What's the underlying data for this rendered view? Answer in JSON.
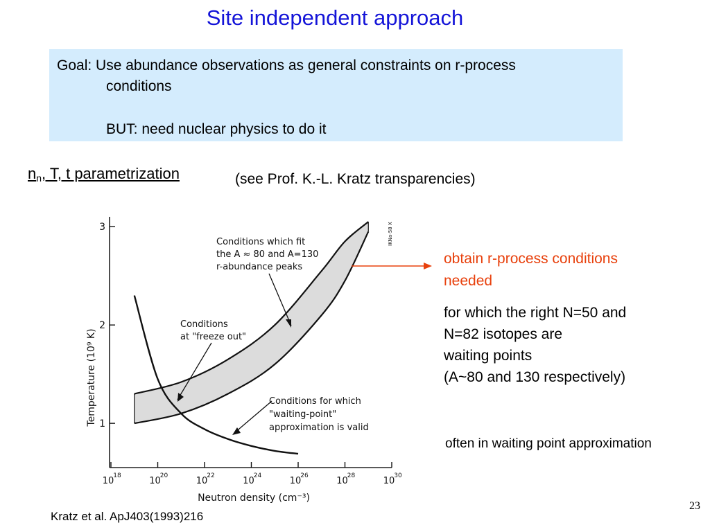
{
  "title": "Site independent approach",
  "goal_box": {
    "line1": "Goal: Use abundance observations as general constraints on r-process",
    "line2": "conditions",
    "line3": "BUT: need nuclear physics to do it",
    "background": "#d4ecfd"
  },
  "parametrization": {
    "main_prefix": "n",
    "main_sub": "n",
    "main_rest": ", T, t parametrization",
    "note": "(see Prof. K.-L. Kratz transparencies)"
  },
  "figure": {
    "ylabel": "Temperature (10⁹ K)",
    "xlabel": "Neutron density (cm⁻³)",
    "yticks": [
      "1",
      "2",
      "3"
    ],
    "xtick_bases": [
      "10",
      "10",
      "10",
      "10",
      "10",
      "10",
      "10"
    ],
    "xtick_exps": [
      "18",
      "20",
      "22",
      "24",
      "26",
      "28",
      "30"
    ],
    "corner_label": "IKNa-58 X",
    "annotation_peaks": [
      "Conditions which fit",
      "the A ≈ 80  and  A=130",
      "r-abundance peaks"
    ],
    "annotation_freeze": [
      "Conditions",
      "at \"freeze out\""
    ],
    "annotation_waiting": [
      "Conditions for which",
      "\"waiting-point\"",
      "approximation is valid"
    ]
  },
  "chart_data": {
    "type": "line",
    "title": "",
    "xlabel": "Neutron density (cm⁻³)",
    "ylabel": "Temperature (10⁹ K)",
    "xscale": "log",
    "xlim": [
      1e+18,
      1e+30
    ],
    "ylim": [
      0.55,
      3.1
    ],
    "series": [
      {
        "name": "Conditions which fit the A ≈ 80 and A=130 r-abundance peaks (upper edge)",
        "x": [
          1e+19,
          1e+21,
          1e+23,
          1e+25,
          1e+27,
          1e+28,
          1e+29
        ],
        "y": [
          1.3,
          1.42,
          1.65,
          2.0,
          2.55,
          2.85,
          3.05
        ]
      },
      {
        "name": "Conditions which fit the A ≈ 80 and A=130 r-abundance peaks (lower edge)",
        "x": [
          1e+19,
          1e+21,
          1e+23,
          1e+25,
          1e+27,
          1e+28,
          1e+29
        ],
        "y": [
          1.0,
          1.1,
          1.3,
          1.6,
          2.1,
          2.45,
          2.95
        ]
      },
      {
        "name": "Conditions for which \"waiting-point\" approximation is valid",
        "x": [
          1e+19,
          1e+20,
          1e+21,
          1e+22,
          1e+23,
          1e+24,
          1e+25,
          1e+26
        ],
        "y": [
          2.3,
          1.45,
          1.1,
          0.94,
          0.84,
          0.77,
          0.72,
          0.69
        ]
      }
    ]
  },
  "callout": {
    "text": "obtain r-process conditions needed",
    "color": "#e8400c"
  },
  "right_text": {
    "line1": "for which the right N=50 and",
    "line2": "N=82 isotopes are",
    "line3": "waiting points",
    "line4": "(A~80 and 130 respectively)"
  },
  "often_text": "often in waiting point approximation",
  "citation": "Kratz et al. ApJ403(1993)216",
  "page_number": "23",
  "title_color": "#1414d8"
}
